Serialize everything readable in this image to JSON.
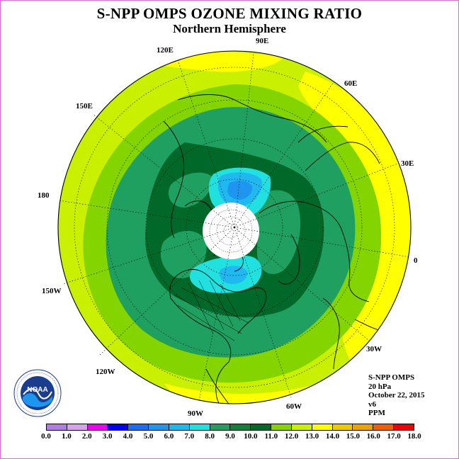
{
  "title": "S-NPP OMPS OZONE MIXING RATIO",
  "subtitle": "Northern Hemisphere",
  "longitude_labels": [
    "90E",
    "60E",
    "30E",
    "0",
    "30W",
    "60W",
    "90W",
    "120W",
    "150W",
    "180",
    "150E",
    "120E"
  ],
  "info": {
    "instrument": "S-NPP OMPS",
    "pressure": "20 hPa",
    "date": "October 22, 2015",
    "version": "v6",
    "units": "PPM"
  },
  "colorbar": {
    "labels": [
      "0.0",
      "1.0",
      "2.0",
      "3.0",
      "4.0",
      "5.0",
      "6.0",
      "7.0",
      "8.0",
      "9.0",
      "10.0",
      "11.0",
      "12.0",
      "13.0",
      "14.0",
      "15.0",
      "16.0",
      "17.0",
      "18.0"
    ],
    "colors": [
      "#b07ce8",
      "#d8a0f0",
      "#ee00ee",
      "#0000ee",
      "#1a6ef0",
      "#1e96f0",
      "#20b8f0",
      "#20e0e0",
      "#20a060",
      "#10803a",
      "#006828",
      "#84d400",
      "#c8f000",
      "#ffff00",
      "#f0c800",
      "#f0a000",
      "#f06000",
      "#ee0000",
      "#8a5a3a"
    ]
  },
  "logo": {
    "text": "NOAA",
    "ring_text": "NATIONAL OCEANIC AND ATMOSPHERIC ADMINISTRATION · U.S. DEPARTMENT OF COMMERCE"
  },
  "map_colors": {
    "background": "#c8f000",
    "light_green": "#84d400",
    "yellow": "#ffff00",
    "green": "#20a060",
    "dark_green": "#006828",
    "cyan": "#20e0e0",
    "light_blue": "#20b8f0",
    "blue": "#1e96f0",
    "pole_cap": "#ffffff"
  }
}
